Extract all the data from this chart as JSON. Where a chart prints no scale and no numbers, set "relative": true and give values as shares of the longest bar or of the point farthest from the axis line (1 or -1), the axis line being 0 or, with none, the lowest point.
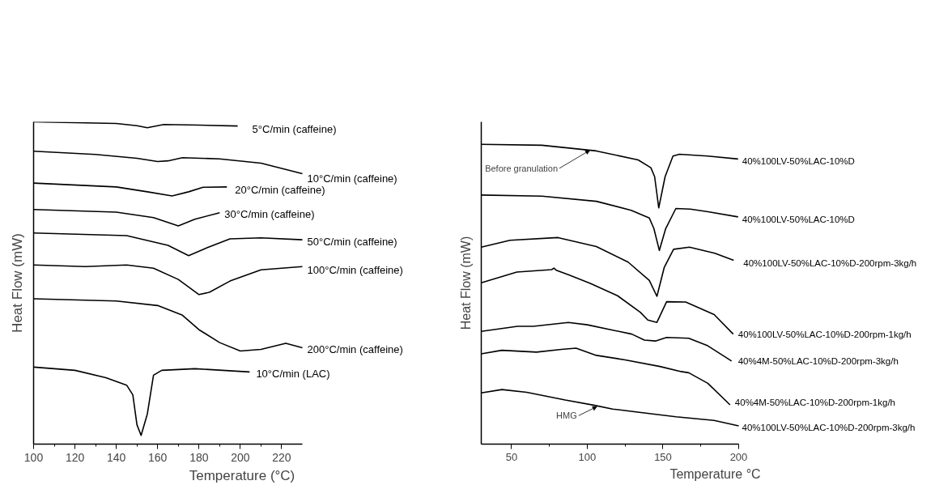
{
  "chart_data": [
    {
      "type": "line",
      "relative": true,
      "xlabel": "Temperature (°C)",
      "ylabel": "Heat Flow (mW)",
      "xlim": [
        100,
        230
      ],
      "xticks": [
        100,
        120,
        140,
        160,
        180,
        200,
        220
      ],
      "grid": false,
      "legend": false,
      "tick_labels": "x",
      "series": [
        {
          "name": "5°C/min (caffeine)",
          "color": "#000000",
          "x": [
            100,
            140,
            150,
            155,
            163,
            180,
            198.7
          ],
          "values": [
            1.0,
            0.995,
            0.988,
            0.982,
            0.992,
            0.99,
            0.987
          ]
        },
        {
          "name": "10°C/min (caffeine)",
          "color": "#000000",
          "x": [
            100,
            130,
            150,
            160,
            165,
            172,
            190,
            210,
            230
          ],
          "values": [
            0.909,
            0.899,
            0.887,
            0.877,
            0.879,
            0.889,
            0.885,
            0.872,
            0.839
          ]
        },
        {
          "name": "20°C/min (caffeine)",
          "color": "#000000",
          "x": [
            100,
            140,
            155,
            167,
            175,
            182,
            193.5
          ],
          "values": [
            0.81,
            0.798,
            0.783,
            0.77,
            0.783,
            0.797,
            0.798
          ]
        },
        {
          "name": "30°C/min (caffeine)",
          "color": "#000000",
          "x": [
            100,
            140,
            158,
            170,
            178,
            190
          ],
          "values": [
            0.728,
            0.72,
            0.703,
            0.677,
            0.698,
            0.718
          ]
        },
        {
          "name": "50°C/min (caffeine)",
          "color": "#000000",
          "x": [
            100,
            145,
            165,
            175,
            183,
            195,
            210,
            230
          ],
          "values": [
            0.655,
            0.647,
            0.617,
            0.585,
            0.607,
            0.637,
            0.64,
            0.634
          ]
        },
        {
          "name": "100°C/min (caffeine)",
          "color": "#000000",
          "x": [
            100,
            125,
            145,
            158,
            170,
            180,
            185,
            195,
            210,
            230
          ],
          "values": [
            0.556,
            0.551,
            0.556,
            0.546,
            0.511,
            0.464,
            0.471,
            0.506,
            0.541,
            0.551
          ]
        },
        {
          "name": "200°C/min (caffeine)",
          "color": "#000000",
          "x": [
            100,
            140,
            160,
            172,
            180,
            190,
            200,
            210,
            222,
            230
          ],
          "values": [
            0.451,
            0.444,
            0.43,
            0.4,
            0.355,
            0.315,
            0.289,
            0.294,
            0.313,
            0.299
          ]
        },
        {
          "name": "10°C/min (LAC)",
          "color": "#000000",
          "x": [
            100,
            120,
            135,
            145,
            148,
            150,
            152,
            155,
            158,
            162,
            178,
            204.5
          ],
          "values": [
            0.239,
            0.229,
            0.206,
            0.183,
            0.153,
            0.06,
            0.027,
            0.093,
            0.214,
            0.229,
            0.234,
            0.224
          ]
        }
      ]
    },
    {
      "type": "line",
      "relative": true,
      "xlabel": "Temperature °C",
      "ylabel": "Heat Flow (mW)",
      "xlim": [
        30,
        200
      ],
      "xticks": [
        50,
        100,
        150,
        200
      ],
      "grid": false,
      "legend": false,
      "tick_labels": "x",
      "annotations": [
        {
          "text": "Before granulation",
          "x": 101.6,
          "y": 0.98
        },
        {
          "text": "HMG",
          "x": 106.3,
          "y": 0.125
        }
      ],
      "series": [
        {
          "name": "40%100LV-50%LAC-10%D",
          "color": "#000000",
          "x": [
            30,
            70,
            106,
            133.6,
            142,
            144.5,
            147.2,
            151.4,
            156.6,
            160.8,
            179.7,
            199.6
          ],
          "values": [
            1.0,
            0.997,
            0.978,
            0.948,
            0.922,
            0.892,
            0.788,
            0.892,
            0.961,
            0.967,
            0.961,
            0.951
          ]
        },
        {
          "name": "40%100LV-50%LAC-10%D",
          "color": "#000000",
          "x": [
            30,
            70,
            106,
            129,
            141,
            144,
            147.6,
            151.8,
            158.5,
            168,
            179.7,
            199.6
          ],
          "values": [
            0.831,
            0.827,
            0.81,
            0.78,
            0.754,
            0.719,
            0.646,
            0.719,
            0.786,
            0.784,
            0.775,
            0.758
          ]
        },
        {
          "name": "40%100LV-50%LAC-10%D-200rpm-3kg/h",
          "color": "#000000",
          "x": [
            30,
            49,
            80.7,
            106,
            127,
            141,
            146,
            150.8,
            157,
            167.5,
            184.2,
            196.7
          ],
          "values": [
            0.657,
            0.68,
            0.689,
            0.659,
            0.607,
            0.546,
            0.493,
            0.589,
            0.65,
            0.657,
            0.637,
            0.613
          ]
        },
        {
          "name": "40%100LV-50%LAC-10%D-200rpm-1kg/h",
          "color": "#000000",
          "x": [
            30,
            53.5,
            76.5,
            78,
            79.5,
            87.5,
            102,
            120,
            135,
            140,
            146,
            152.4,
            165,
            183.8,
            196.4
          ],
          "values": [
            0.538,
            0.574,
            0.582,
            0.587,
            0.58,
            0.565,
            0.536,
            0.495,
            0.44,
            0.414,
            0.406,
            0.475,
            0.474,
            0.432,
            0.367
          ]
        },
        {
          "name": "40%4M-50%LAC-10%D-200rpm-3kg/h",
          "color": "#000000",
          "x": [
            30,
            54,
            64.5,
            87.5,
            100,
            129.4,
            137.7,
            145,
            152.4,
            167,
            179.6,
            195.3
          ],
          "values": [
            0.376,
            0.393,
            0.393,
            0.406,
            0.398,
            0.367,
            0.347,
            0.344,
            0.356,
            0.353,
            0.328,
            0.277
          ]
        },
        {
          "name": "40%4M-50%LAC-10%D-200rpm-1kg/h",
          "color": "#000000",
          "x": [
            30,
            43.6,
            66.5,
            83,
            92.6,
            106,
            125,
            148,
            162,
            167,
            179.6,
            194.3
          ],
          "values": [
            0.301,
            0.313,
            0.307,
            0.316,
            0.32,
            0.296,
            0.281,
            0.259,
            0.242,
            0.238,
            0.203,
            0.131
          ]
        },
        {
          "name": "40%100LV-50%LAC-10%D-200rpm-3kg/h",
          "color": "#000000",
          "x": [
            30,
            43.6,
            60,
            85.4,
            104.2,
            116.8,
            137.7,
            158.6,
            183.8,
            200
          ],
          "values": [
            0.171,
            0.182,
            0.173,
            0.147,
            0.13,
            0.117,
            0.104,
            0.091,
            0.079,
            0.061
          ]
        }
      ]
    }
  ]
}
